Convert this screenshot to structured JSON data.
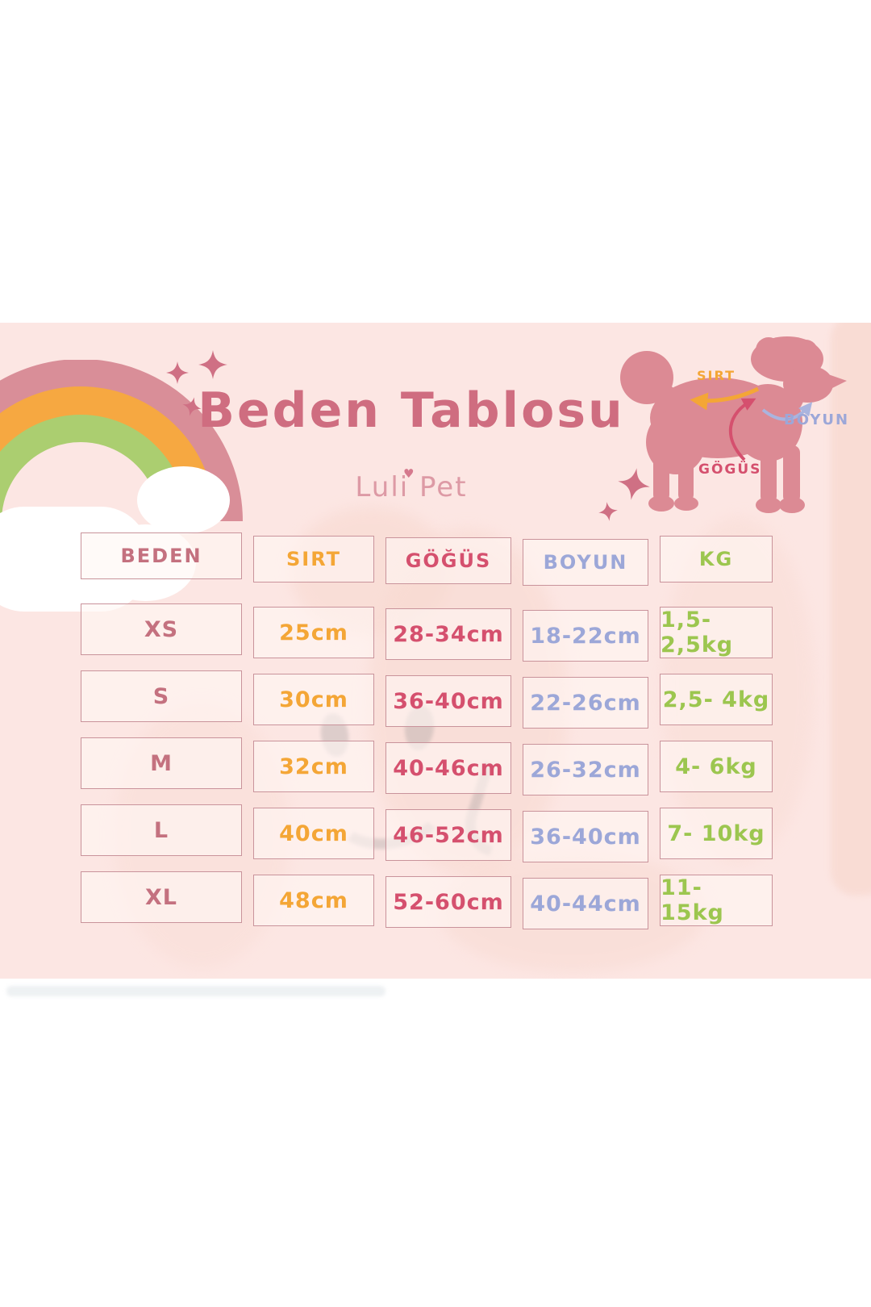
{
  "page": {
    "title": "Beden Tablosu",
    "brand": "Luli Pet"
  },
  "diagram": {
    "labels": [
      {
        "id": "sirt",
        "text": "SIRT",
        "color": "#f4a636"
      },
      {
        "id": "boyun",
        "text": "BOYUN",
        "color": "#9ca7d8"
      },
      {
        "id": "gogus",
        "text": "GÖGÜS",
        "color": "#d5506e"
      }
    ]
  },
  "table": {
    "headers": [
      {
        "key": "beden",
        "label": "BEDEN",
        "color": "#c4717f"
      },
      {
        "key": "sirt",
        "label": "SIRT",
        "color": "#f4a636"
      },
      {
        "key": "gogus",
        "label": "GÖĞÜS",
        "color": "#d5506e"
      },
      {
        "key": "boyun",
        "label": "BOYUN",
        "color": "#9ca7d8"
      },
      {
        "key": "kg",
        "label": "KG",
        "color": "#9cc64f"
      }
    ],
    "rows": [
      {
        "beden": "XS",
        "sirt": "25cm",
        "gogus": "28-34cm",
        "boyun": "18-22cm",
        "kg": "1,5- 2,5kg"
      },
      {
        "beden": "S",
        "sirt": "30cm",
        "gogus": "36-40cm",
        "boyun": "22-26cm",
        "kg": "2,5- 4kg"
      },
      {
        "beden": "M",
        "sirt": "32cm",
        "gogus": "40-46cm",
        "boyun": "26-32cm",
        "kg": "4- 6kg"
      },
      {
        "beden": "L",
        "sirt": "40cm",
        "gogus": "46-52cm",
        "boyun": "36-40cm",
        "kg": "7- 10kg"
      },
      {
        "beden": "XL",
        "sirt": "48cm",
        "gogus": "52-60cm",
        "boyun": "40-44cm",
        "kg": "11- 15kg"
      }
    ]
  },
  "colors": {
    "panel_background": "#fce6e3",
    "title_pink": "#cf6d80",
    "brand_pink": "#dd9aa5",
    "dog_silhouette": "#dc8a94",
    "rainbow_pink": "#d98e98",
    "rainbow_orange": "#f6a841",
    "rainbow_green": "#abce70",
    "accent_orange": "#f4a636",
    "accent_magenta": "#d5506e",
    "accent_lavender": "#9ca7d8",
    "accent_green": "#9cc64f"
  }
}
